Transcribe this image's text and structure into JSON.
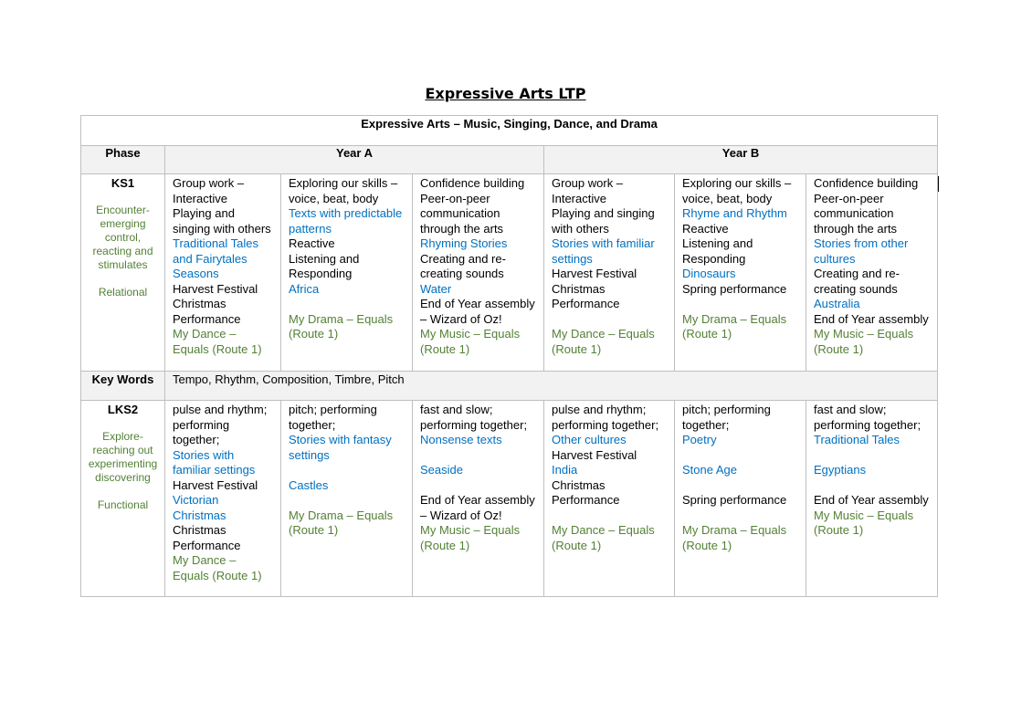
{
  "title": "Expressive Arts LTP",
  "table": {
    "caption": "Expressive Arts – Music, Singing, Dance, and Drama",
    "phase_header": "Phase",
    "year_a": "Year A",
    "year_b": "Year B",
    "colors": {
      "blue": "#0070c0",
      "green": "#538135"
    },
    "rows": [
      {
        "phase": "KS1",
        "phase_lines": [
          "Encounter-emerging control, reacting and stimulates",
          "",
          "Relational"
        ],
        "cells": [
          [
            {
              "t": "Group work – Interactive",
              "c": ""
            },
            {
              "t": "Playing and singing with others",
              "c": ""
            },
            {
              "t": "Traditional Tales and Fairytales",
              "c": "blue"
            },
            {
              "t": "Seasons",
              "c": "blue"
            },
            {
              "t": "Harvest Festival",
              "c": ""
            },
            {
              "t": "Christmas Performance",
              "c": ""
            },
            {
              "t": "My Dance – Equals (Route 1)",
              "c": "green"
            }
          ],
          [
            {
              "t": "Exploring our skills – voice, beat, body",
              "c": ""
            },
            {
              "t": "Texts with predictable patterns",
              "c": "blue"
            },
            {
              "t": "Reactive",
              "c": ""
            },
            {
              "t": "Listening and Responding",
              "c": ""
            },
            {
              "t": "Africa",
              "c": "blue"
            },
            {
              "t": "",
              "c": ""
            },
            {
              "t": "My Drama – Equals (Route 1)",
              "c": "green"
            }
          ],
          [
            {
              "t": "Confidence building",
              "c": ""
            },
            {
              "t": "Peer-on-peer communication through the arts",
              "c": ""
            },
            {
              "t": "Rhyming Stories",
              "c": "blue"
            },
            {
              "t": "Creating and re-creating sounds",
              "c": ""
            },
            {
              "t": "Water",
              "c": "blue"
            },
            {
              "t": "End of Year assembly – Wizard of Oz!",
              "c": ""
            },
            {
              "t": "My Music – Equals (Route 1)",
              "c": "green"
            }
          ],
          [
            {
              "t": "Group work – Interactive",
              "c": ""
            },
            {
              "t": "Playing and singing with others",
              "c": ""
            },
            {
              "t": "Stories with familiar settings",
              "c": "blue"
            },
            {
              "t": "Harvest Festival",
              "c": ""
            },
            {
              "t": "Christmas Performance",
              "c": ""
            },
            {
              "t": "",
              "c": ""
            },
            {
              "t": "My Dance – Equals (Route 1)",
              "c": "green"
            }
          ],
          [
            {
              "t": "Exploring our skills – voice, beat, body",
              "c": ""
            },
            {
              "t": "Rhyme and Rhythm",
              "c": "blue"
            },
            {
              "t": "Reactive",
              "c": ""
            },
            {
              "t": "Listening and Responding",
              "c": ""
            },
            {
              "t": "Dinosaurs",
              "c": "blue"
            },
            {
              "t": "Spring performance",
              "c": ""
            },
            {
              "t": "",
              "c": ""
            },
            {
              "t": "My Drama – Equals (Route 1)",
              "c": "green"
            }
          ],
          [
            {
              "t": "Confidence building",
              "c": ""
            },
            {
              "t": "Peer-on-peer communication through the arts",
              "c": ""
            },
            {
              "t": "Stories from other cultures",
              "c": "blue"
            },
            {
              "t": "Creating and re-creating sounds",
              "c": ""
            },
            {
              "t": "Australia",
              "c": "blue"
            },
            {
              "t": "End of Year assembly",
              "c": ""
            },
            {
              "t": "My Music – Equals (Route 1)",
              "c": "green"
            }
          ]
        ]
      },
      {
        "phase": "LKS2",
        "phase_lines": [
          "Explore-reaching out experimenting discovering",
          "",
          "Functional"
        ],
        "cells": [
          [
            {
              "t": "pulse and rhythm; performing together;",
              "c": ""
            },
            {
              "t": "Stories with familiar settings",
              "c": "blue"
            },
            {
              "t": "Harvest Festival",
              "c": ""
            },
            {
              "t": "Victorian Christmas",
              "c": "blue"
            },
            {
              "t": "Christmas Performance",
              "c": ""
            },
            {
              "t": "My Dance – Equals (Route 1)",
              "c": "green"
            }
          ],
          [
            {
              "t": "pitch; performing together;",
              "c": ""
            },
            {
              "t": "Stories with fantasy settings",
              "c": "blue"
            },
            {
              "t": "",
              "c": ""
            },
            {
              "t": "Castles",
              "c": "blue"
            },
            {
              "t": "",
              "c": ""
            },
            {
              "t": "My Drama – Equals (Route 1)",
              "c": "green"
            }
          ],
          [
            {
              "t": "fast and slow; performing together;",
              "c": ""
            },
            {
              "t": "Nonsense texts",
              "c": "blue"
            },
            {
              "t": "",
              "c": ""
            },
            {
              "t": "Seaside",
              "c": "blue"
            },
            {
              "t": "",
              "c": ""
            },
            {
              "t": "End of Year assembly – Wizard of Oz!",
              "c": ""
            },
            {
              "t": "My Music – Equals (Route 1)",
              "c": "green"
            }
          ],
          [
            {
              "t": "pulse and rhythm; performing together;",
              "c": ""
            },
            {
              "t": "Other cultures",
              "c": "blue"
            },
            {
              "t": "Harvest Festival",
              "c": ""
            },
            {
              "t": "India",
              "c": "blue"
            },
            {
              "t": "Christmas Performance",
              "c": ""
            },
            {
              "t": "",
              "c": ""
            },
            {
              "t": "My Dance – Equals (Route 1)",
              "c": "green"
            }
          ],
          [
            {
              "t": "pitch; performing together;",
              "c": ""
            },
            {
              "t": "Poetry",
              "c": "blue"
            },
            {
              "t": "",
              "c": ""
            },
            {
              "t": "Stone Age",
              "c": "blue"
            },
            {
              "t": "",
              "c": ""
            },
            {
              "t": "Spring performance",
              "c": ""
            },
            {
              "t": "",
              "c": ""
            },
            {
              "t": "My Drama – Equals (Route 1)",
              "c": "green"
            }
          ],
          [
            {
              "t": "fast and slow; performing together;",
              "c": ""
            },
            {
              "t": "Traditional Tales",
              "c": "blue"
            },
            {
              "t": "",
              "c": ""
            },
            {
              "t": "Egyptians",
              "c": "blue"
            },
            {
              "t": "",
              "c": ""
            },
            {
              "t": "End of Year assembly",
              "c": ""
            },
            {
              "t": "My Music – Equals (Route 1)",
              "c": "green"
            }
          ]
        ]
      }
    ],
    "key_words_label": "Key Words",
    "key_words": "Tempo, Rhythm, Composition, Timbre, Pitch"
  }
}
